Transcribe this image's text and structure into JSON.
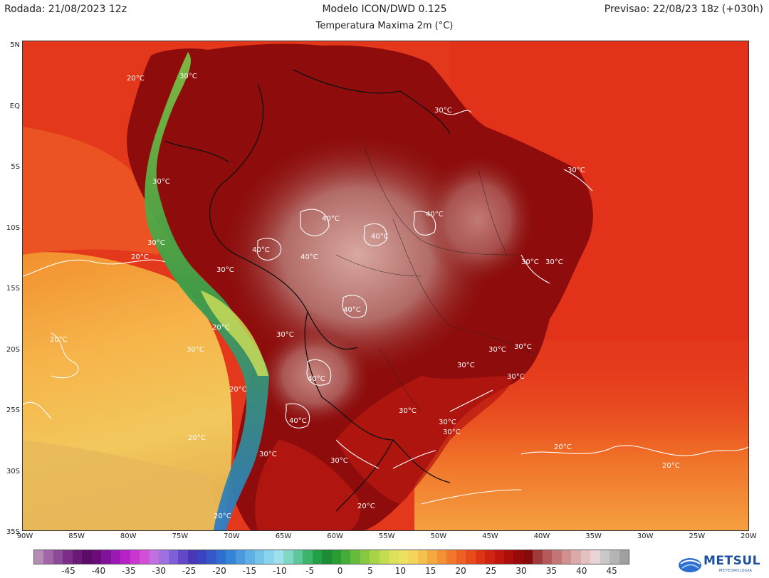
{
  "header": {
    "left": "Rodada: 21/08/2023 12z",
    "center": "Modelo ICON/DWD 0.125",
    "right": "Previsao: 22/08/23 18z (+030h)",
    "subtitle": "Temperatura Maxima 2m (°C)"
  },
  "axes": {
    "latitudes": [
      "5N",
      "EQ",
      "5S",
      "10S",
      "15S",
      "20S",
      "25S",
      "30S",
      "35S"
    ],
    "longitudes": [
      "90W",
      "85W",
      "80W",
      "75W",
      "70W",
      "65W",
      "60W",
      "55W",
      "50W",
      "45W",
      "40W",
      "35W",
      "30W",
      "25W",
      "20W"
    ]
  },
  "contour_labels": [
    "30°C",
    "30°C",
    "30°C",
    "30°C",
    "30°C",
    "30°C",
    "30°C",
    "30°C",
    "30°C",
    "30°C",
    "30°C",
    "30°C",
    "30°C",
    "30°C",
    "30°C",
    "30°C",
    "30°C",
    "30°C",
    "30°C",
    "40°C",
    "40°C",
    "40°C",
    "40°C",
    "40°C",
    "40°C",
    "40°C",
    "40°C",
    "20°C",
    "20°C",
    "20°C",
    "20°C",
    "20°C",
    "20°C",
    "20°C",
    "20°C",
    "20°C",
    "20°C"
  ],
  "scale": {
    "labels": [
      "-45",
      "-40",
      "-35",
      "-30",
      "-25",
      "-20",
      "-15",
      "-10",
      "-5",
      "0",
      "5",
      "10",
      "15",
      "20",
      "25",
      "30",
      "35",
      "40",
      "45"
    ],
    "colors": [
      "#b58cb8",
      "#a066a8",
      "#8d4a98",
      "#7a2c86",
      "#6a1a76",
      "#5a0c66",
      "#6c0c7a",
      "#82129a",
      "#9a1ab4",
      "#b622c8",
      "#c838d0",
      "#d050d8",
      "#c070e0",
      "#a070e0",
      "#8060d8",
      "#6048c8",
      "#4838b8",
      "#3a44c0",
      "#3458c8",
      "#2e6ed0",
      "#3484d8",
      "#4a9ade",
      "#5eb0e4",
      "#74c4ea",
      "#8ad4ee",
      "#9ee0ec",
      "#7ed8c4",
      "#5ec89a",
      "#3cb46c",
      "#22a048",
      "#1c8c36",
      "#2a9c34",
      "#46ac38",
      "#66bc3c",
      "#88c840",
      "#a8d448",
      "#c4dc50",
      "#dce05a",
      "#ece060",
      "#f4d45a",
      "#f6c04c",
      "#f6a840",
      "#f49036",
      "#f2782c",
      "#ee6024",
      "#e84a1c",
      "#de3416",
      "#d02412",
      "#c0160e",
      "#ac0e0c",
      "#980a0a",
      "#860a0a",
      "#a03a3a",
      "#b45a5a",
      "#c47676",
      "#d09090",
      "#dcaaaa",
      "#e4c0c0",
      "#e8d4d4",
      "#c8c8c8",
      "#b4b4b4",
      "#a0a0a0"
    ],
    "unit_colors_note_hidden": ""
  },
  "logo": {
    "text": "METSUL",
    "sub": "METEOROLOGIA"
  },
  "colors": {
    "ocean_warm": "#e43a1e",
    "ocean_cool": "#f2a33a",
    "land_hot": "#8a0a0a",
    "land_core": "#b87878",
    "andes_cold": "#5ea83c"
  }
}
